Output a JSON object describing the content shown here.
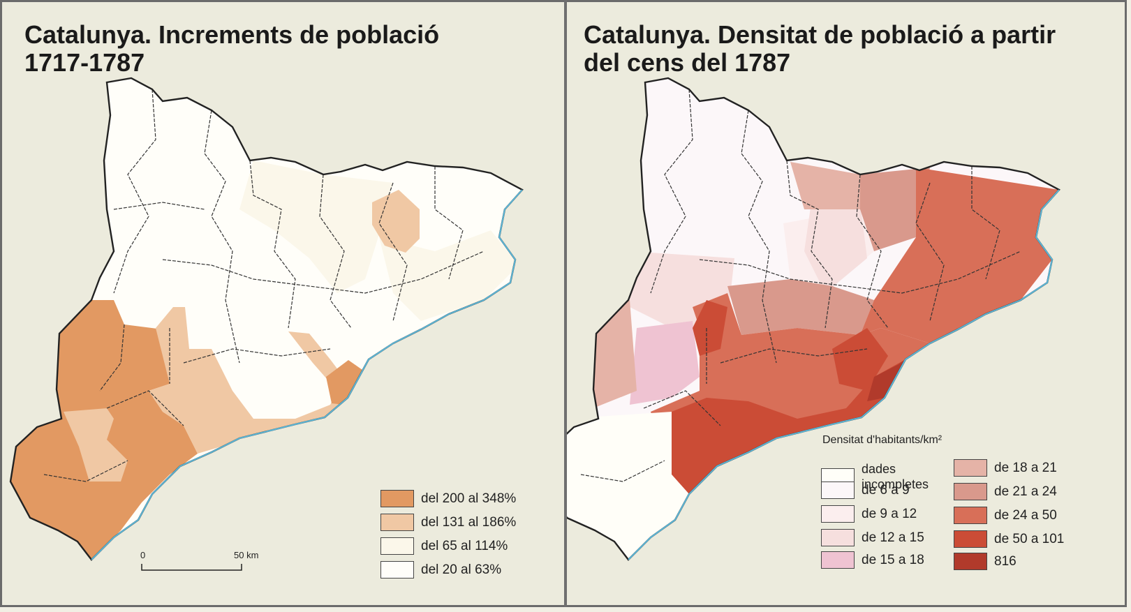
{
  "left_map": {
    "title": "Catalunya. Increments de població\n1717-1787",
    "legend": [
      {
        "label": "del 200 al 348%",
        "color": "#e29962"
      },
      {
        "label": "del 131 al 186%",
        "color": "#f0c8a4"
      },
      {
        "label": "del 65 al 114%",
        "color": "#fbf7ea"
      },
      {
        "label": "del 20 al 63%",
        "color": "#fffef9"
      }
    ],
    "scale": {
      "start_label": "0",
      "end_label": "50 km"
    }
  },
  "right_map": {
    "title": "Catalunya. Densitat de població a partir\ndel cens del 1787",
    "legend_title": "Densitat d'habitants/km²",
    "legend": [
      {
        "label": "dades\nincompletes",
        "color": "#fffef8"
      },
      {
        "label": "de 6 a 9",
        "color": "#fcf7f9"
      },
      {
        "label": "de 9 a 12",
        "color": "#fbeeee"
      },
      {
        "label": "de 12 a 15",
        "color": "#f6dfde"
      },
      {
        "label": "de 15 a 18",
        "color": "#efc3d2"
      },
      {
        "label": "de 18 a 21",
        "color": "#e5b3a7"
      },
      {
        "label": "de 21 a 24",
        "color": "#d9998c"
      },
      {
        "label": "de 24 a 50",
        "color": "#d86f58"
      },
      {
        "label": "de 50 a 101",
        "color": "#cb4c36"
      },
      {
        "label": "816",
        "color": "#b13a2b"
      }
    ]
  },
  "colors": {
    "sea_coast": "#5cb7d8",
    "border": "#222222"
  }
}
